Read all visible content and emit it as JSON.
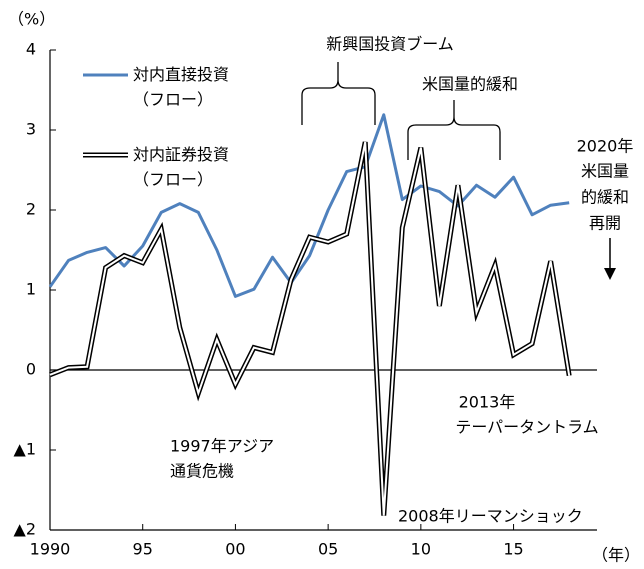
{
  "chart_data": {
    "type": "line",
    "y_unit_label": "（%）",
    "x_unit_label": "（年）",
    "x": [
      1990,
      1991,
      1992,
      1993,
      1994,
      1995,
      1996,
      1997,
      1998,
      1999,
      2000,
      2001,
      2002,
      2003,
      2004,
      2005,
      2006,
      2007,
      2008,
      2009,
      2010,
      2011,
      2012,
      2013,
      2014,
      2015,
      2016,
      2017,
      2018
    ],
    "series": [
      {
        "name": "対内直接投資（フロー）",
        "color": "#4f81bd",
        "style": "solid",
        "values": [
          1.04,
          1.37,
          1.47,
          1.53,
          1.3,
          1.55,
          1.97,
          2.08,
          1.97,
          1.5,
          0.92,
          1.01,
          1.41,
          1.09,
          1.43,
          2.0,
          2.48,
          2.54,
          3.19,
          2.13,
          2.3,
          2.23,
          2.05,
          2.31,
          2.16,
          2.41,
          1.94,
          2.06,
          2.09
        ]
      },
      {
        "name": "対内証券投資（フロー）",
        "color": "#000000",
        "style": "double",
        "values": [
          -0.06,
          0.03,
          0.04,
          1.28,
          1.43,
          1.34,
          1.76,
          0.53,
          -0.29,
          0.38,
          -0.18,
          0.28,
          0.22,
          1.13,
          1.66,
          1.6,
          1.7,
          2.85,
          -1.82,
          1.78,
          2.78,
          0.8,
          2.31,
          0.72,
          1.31,
          0.19,
          0.33,
          1.36,
          -0.07
        ]
      }
    ],
    "xlim": [
      1990,
      2019.5
    ],
    "xticks": [
      {
        "value": 1990,
        "label": "1990"
      },
      {
        "value": 1995,
        "label": "95"
      },
      {
        "value": 2000,
        "label": "00"
      },
      {
        "value": 2005,
        "label": "05"
      },
      {
        "value": 2010,
        "label": "10"
      },
      {
        "value": 2015,
        "label": "15"
      }
    ],
    "ylim": [
      -2,
      4
    ],
    "yticks": [
      {
        "value": -2,
        "label": "▲2"
      },
      {
        "value": -1,
        "label": "▲1"
      },
      0,
      1,
      2,
      3,
      4
    ],
    "annotations": [
      {
        "lines": [
          "新興国投資ブーム"
        ]
      },
      {
        "lines": [
          "米国量的緩和"
        ]
      },
      {
        "lines": [
          "2020年",
          "米国量",
          "的緩和",
          "再開"
        ]
      },
      {
        "lines": [
          "2013年",
          "テーパータントラム"
        ]
      },
      {
        "lines": [
          "1997年アジア",
          "通貨危機"
        ]
      },
      {
        "lines": [
          "2008年リーマンショック"
        ]
      }
    ]
  }
}
